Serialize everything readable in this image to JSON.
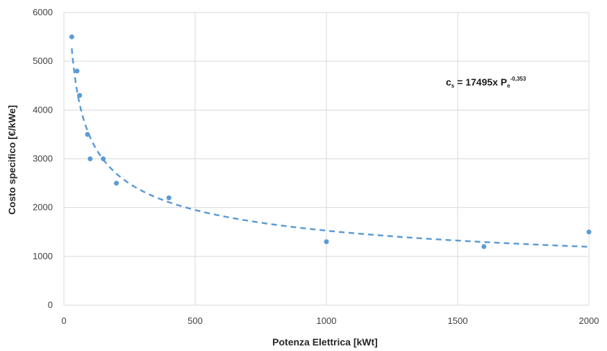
{
  "chart_data": {
    "type": "scatter",
    "xlabel": "Potenza Elettrica [kWt]",
    "ylabel": "Costo specifico [€/kWe]",
    "xlim": [
      0,
      2000
    ],
    "ylim": [
      0,
      6000
    ],
    "x_ticks": [
      0,
      500,
      1000,
      1500,
      2000
    ],
    "y_ticks": [
      0,
      1000,
      2000,
      3000,
      4000,
      5000,
      6000
    ],
    "grid": true,
    "colors": {
      "points": "#5b9bd5",
      "trendline": "#5b9bd5",
      "grid": "#d9d9d9"
    },
    "series": [
      {
        "x": [
          30,
          50,
          60,
          90,
          100,
          150,
          200,
          400,
          1000,
          1600,
          2000
        ],
        "y": [
          5500,
          4800,
          4300,
          3500,
          3000,
          3000,
          2500,
          2200,
          1300,
          1200,
          1500
        ]
      }
    ],
    "trendline": {
      "type": "power",
      "coefficient": 17495,
      "exponent": -0.353,
      "x_from": 30,
      "x_to": 2000
    },
    "annotation": {
      "lhs": "c",
      "lhs_sub": "s",
      "mid": " = 17495x P",
      "p_sub": "e",
      "sup": "-0,353"
    }
  }
}
